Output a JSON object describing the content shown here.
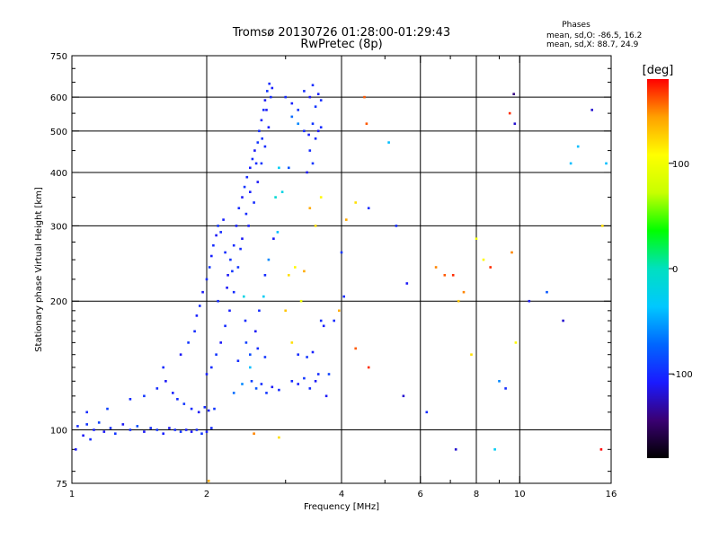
{
  "header": {
    "title_line1": "Tromsø 20130726 01:28:00-01:29:43",
    "title_line2": "RwPretec (8p)",
    "info_title": "Phases",
    "info_line1": "mean, sd,O: -86.5, 16.2",
    "info_line2": "mean, sd,X:  88.7, 24.9"
  },
  "colorbar": {
    "label": "[deg]",
    "ticks": [
      {
        "value": 100,
        "label": "100"
      },
      {
        "value": 0,
        "label": "0"
      },
      {
        "value": -100,
        "label": "-100"
      }
    ],
    "range": [
      -180,
      180
    ],
    "colors": [
      "#000000",
      "#3a0073",
      "#1a1aff",
      "#0066ff",
      "#00c8ff",
      "#00e0c0",
      "#00ff00",
      "#c8ff00",
      "#ffff00",
      "#ffa000",
      "#ff0000"
    ]
  },
  "chart_data": {
    "type": "scatter",
    "xlabel": "Frequency [MHz]",
    "ylabel": "Stationary phase Virtual Height [km]",
    "xscale": "log",
    "yscale": "log",
    "xlim": [
      1,
      16
    ],
    "ylim": [
      75,
      750
    ],
    "xticks": [
      {
        "value": 1,
        "label": "1"
      },
      {
        "value": 2,
        "label": "2"
      },
      {
        "value": 4,
        "label": "4"
      },
      {
        "value": 6,
        "label": "6"
      },
      {
        "value": 8,
        "label": "8"
      },
      {
        "value": 10,
        "label": "10"
      },
      {
        "value": 16,
        "label": "16"
      }
    ],
    "xminor": [
      3,
      5,
      7,
      9
    ],
    "yticks": [
      {
        "value": 75,
        "label": "75"
      },
      {
        "value": 100,
        "label": "100"
      },
      {
        "value": 200,
        "label": "200"
      },
      {
        "value": 300,
        "label": "300"
      },
      {
        "value": 400,
        "label": "400"
      },
      {
        "value": 500,
        "label": "500"
      },
      {
        "value": 600,
        "label": "600"
      },
      {
        "value": 750,
        "label": "750"
      }
    ],
    "grid": true,
    "points": [
      [
        1.03,
        102,
        -100
      ],
      [
        1.06,
        97,
        -110
      ],
      [
        1.08,
        103,
        -95
      ],
      [
        1.12,
        100,
        -105
      ],
      [
        1.15,
        104,
        -90
      ],
      [
        1.18,
        99,
        -110
      ],
      [
        1.22,
        101,
        -100
      ],
      [
        1.25,
        98,
        -95
      ],
      [
        1.3,
        103,
        -110
      ],
      [
        1.35,
        100,
        -100
      ],
      [
        1.4,
        102,
        -85
      ],
      [
        1.45,
        99,
        -110
      ],
      [
        1.5,
        101,
        -100
      ],
      [
        1.55,
        100,
        -95
      ],
      [
        1.6,
        98,
        -105
      ],
      [
        1.65,
        101,
        -110
      ],
      [
        1.7,
        100,
        -100
      ],
      [
        1.75,
        99,
        -95
      ],
      [
        1.8,
        100,
        -105
      ],
      [
        1.85,
        99,
        -110
      ],
      [
        1.9,
        100,
        -100
      ],
      [
        1.95,
        98,
        -95
      ],
      [
        2.0,
        99,
        -105
      ],
      [
        2.05,
        101,
        -100
      ],
      [
        1.08,
        110,
        -100
      ],
      [
        1.2,
        112,
        -90
      ],
      [
        1.35,
        118,
        -100
      ],
      [
        1.45,
        120,
        -95
      ],
      [
        1.55,
        125,
        -100
      ],
      [
        1.62,
        130,
        -110
      ],
      [
        1.68,
        122,
        -105
      ],
      [
        1.72,
        118,
        -100
      ],
      [
        1.78,
        115,
        -95
      ],
      [
        1.85,
        112,
        -100
      ],
      [
        1.92,
        110,
        -110
      ],
      [
        1.98,
        113,
        -100
      ],
      [
        2.02,
        111,
        -105
      ],
      [
        2.08,
        112,
        -95
      ],
      [
        1.6,
        140,
        -100
      ],
      [
        1.75,
        150,
        -110
      ],
      [
        1.82,
        160,
        -95
      ],
      [
        1.88,
        170,
        -100
      ],
      [
        1.9,
        185,
        -105
      ],
      [
        1.93,
        195,
        -100
      ],
      [
        1.96,
        210,
        -110
      ],
      [
        2.0,
        225,
        -100
      ],
      [
        2.03,
        240,
        -95
      ],
      [
        2.05,
        255,
        -105
      ],
      [
        2.07,
        270,
        -100
      ],
      [
        2.1,
        285,
        -110
      ],
      [
        2.12,
        300,
        -95
      ],
      [
        2.15,
        290,
        -100
      ],
      [
        2.18,
        310,
        -105
      ],
      [
        2.2,
        260,
        -100
      ],
      [
        2.23,
        230,
        -110
      ],
      [
        2.26,
        250,
        -95
      ],
      [
        2.3,
        270,
        -100
      ],
      [
        2.33,
        300,
        -105
      ],
      [
        2.36,
        330,
        -100
      ],
      [
        2.4,
        350,
        -110
      ],
      [
        2.43,
        370,
        -95
      ],
      [
        2.46,
        390,
        -100
      ],
      [
        2.5,
        410,
        -105
      ],
      [
        2.53,
        430,
        -100
      ],
      [
        2.56,
        450,
        -110
      ],
      [
        2.6,
        470,
        -95
      ],
      [
        2.62,
        500,
        -100
      ],
      [
        2.65,
        530,
        -105
      ],
      [
        2.68,
        560,
        -100
      ],
      [
        2.7,
        590,
        -110
      ],
      [
        2.73,
        620,
        -95
      ],
      [
        2.76,
        645,
        -100
      ],
      [
        2.8,
        630,
        -105
      ],
      [
        2.78,
        600,
        -100
      ],
      [
        2.72,
        560,
        -110
      ],
      [
        2.66,
        480,
        -95
      ],
      [
        2.58,
        420,
        -100
      ],
      [
        2.5,
        360,
        -105
      ],
      [
        2.45,
        320,
        -100
      ],
      [
        2.4,
        280,
        -110
      ],
      [
        2.35,
        240,
        -95
      ],
      [
        2.3,
        210,
        -100
      ],
      [
        2.25,
        190,
        -105
      ],
      [
        2.2,
        175,
        -100
      ],
      [
        2.15,
        160,
        -110
      ],
      [
        2.1,
        150,
        -95
      ],
      [
        2.05,
        140,
        -100
      ],
      [
        2.0,
        135,
        -105
      ],
      [
        2.12,
        200,
        -100
      ],
      [
        2.22,
        215,
        -110
      ],
      [
        2.28,
        235,
        -95
      ],
      [
        2.38,
        265,
        -100
      ],
      [
        2.48,
        300,
        -105
      ],
      [
        2.55,
        340,
        -100
      ],
      [
        2.6,
        380,
        -110
      ],
      [
        2.65,
        420,
        -95
      ],
      [
        2.7,
        460,
        -100
      ],
      [
        2.75,
        510,
        -105
      ],
      [
        2.52,
        130,
        -90
      ],
      [
        2.58,
        125,
        -80
      ],
      [
        2.65,
        128,
        -100
      ],
      [
        2.72,
        122,
        -95
      ],
      [
        2.8,
        126,
        -110
      ],
      [
        2.9,
        124,
        -100
      ],
      [
        2.5,
        150,
        -85
      ],
      [
        2.6,
        155,
        -100
      ],
      [
        2.7,
        148,
        -95
      ],
      [
        2.3,
        122,
        -70
      ],
      [
        2.4,
        128,
        -60
      ],
      [
        2.35,
        145,
        -100
      ],
      [
        2.45,
        160,
        -90
      ],
      [
        3.0,
        600,
        -100
      ],
      [
        3.1,
        580,
        -105
      ],
      [
        3.2,
        560,
        -95
      ],
      [
        3.3,
        620,
        -100
      ],
      [
        3.4,
        600,
        -110
      ],
      [
        3.45,
        640,
        -100
      ],
      [
        3.5,
        570,
        -95
      ],
      [
        3.55,
        610,
        -105
      ],
      [
        3.6,
        590,
        -100
      ],
      [
        3.3,
        500,
        -100
      ],
      [
        3.38,
        490,
        -105
      ],
      [
        3.45,
        520,
        -95
      ],
      [
        3.5,
        480,
        -100
      ],
      [
        3.55,
        500,
        -110
      ],
      [
        3.6,
        510,
        -100
      ],
      [
        3.1,
        540,
        -70
      ],
      [
        3.2,
        520,
        -60
      ],
      [
        3.4,
        450,
        -100
      ],
      [
        3.45,
        420,
        -95
      ],
      [
        3.35,
        400,
        -110
      ],
      [
        3.05,
        410,
        -80
      ],
      [
        3.1,
        130,
        -100
      ],
      [
        3.2,
        128,
        -105
      ],
      [
        3.3,
        132,
        -95
      ],
      [
        3.4,
        125,
        -100
      ],
      [
        3.5,
        130,
        -110
      ],
      [
        3.55,
        135,
        -100
      ],
      [
        3.2,
        150,
        -100
      ],
      [
        3.35,
        148,
        -95
      ],
      [
        3.45,
        152,
        -105
      ],
      [
        3.6,
        180,
        -100
      ],
      [
        3.65,
        175,
        -105
      ],
      [
        3.0,
        190,
        130
      ],
      [
        3.05,
        230,
        120
      ],
      [
        3.15,
        240,
        110
      ],
      [
        3.3,
        235,
        140
      ],
      [
        3.1,
        160,
        120
      ],
      [
        3.25,
        200,
        100
      ],
      [
        3.5,
        300,
        120
      ],
      [
        3.4,
        330,
        140
      ],
      [
        3.6,
        350,
        110
      ],
      [
        4.1,
        310,
        140
      ],
      [
        4.3,
        340,
        120
      ],
      [
        4.5,
        600,
        160
      ],
      [
        4.55,
        520,
        160
      ],
      [
        4.6,
        330,
        -100
      ],
      [
        5.1,
        470,
        -40
      ],
      [
        5.3,
        300,
        -100
      ],
      [
        5.6,
        220,
        -110
      ],
      [
        6.5,
        240,
        150
      ],
      [
        6.8,
        230,
        160
      ],
      [
        7.1,
        230,
        170
      ],
      [
        7.3,
        200,
        130
      ],
      [
        7.5,
        210,
        150
      ],
      [
        7.8,
        150,
        120
      ],
      [
        8.0,
        280,
        100
      ],
      [
        8.3,
        250,
        110
      ],
      [
        8.6,
        240,
        170
      ],
      [
        9.0,
        130,
        -60
      ],
      [
        9.3,
        125,
        -100
      ],
      [
        9.5,
        550,
        170
      ],
      [
        9.6,
        260,
        150
      ],
      [
        9.7,
        610,
        -140
      ],
      [
        9.75,
        520,
        -120
      ],
      [
        9.8,
        160,
        110
      ],
      [
        10.5,
        200,
        -110
      ],
      [
        11.5,
        210,
        -80
      ],
      [
        12.5,
        180,
        -120
      ],
      [
        13.0,
        420,
        -40
      ],
      [
        13.5,
        460,
        -40
      ],
      [
        14.5,
        560,
        -120
      ],
      [
        15.3,
        300,
        120
      ],
      [
        15.6,
        420,
        -40
      ],
      [
        15.2,
        90,
        180
      ],
      [
        7.2,
        90,
        -120
      ],
      [
        8.8,
        90,
        -30
      ],
      [
        6.2,
        110,
        -100
      ],
      [
        5.5,
        120,
        -120
      ],
      [
        4.3,
        155,
        160
      ],
      [
        4.6,
        140,
        170
      ],
      [
        2.55,
        98,
        150
      ],
      [
        2.9,
        96,
        120
      ],
      [
        1.1,
        95,
        -100
      ],
      [
        1.02,
        90,
        -110
      ],
      [
        2.02,
        76,
        140
      ],
      [
        3.75,
        135,
        -90
      ],
      [
        3.85,
        180,
        -100
      ],
      [
        3.7,
        120,
        -110
      ],
      [
        4.0,
        260,
        -95
      ],
      [
        4.05,
        205,
        -100
      ],
      [
        3.95,
        190,
        140
      ],
      [
        2.9,
        410,
        -30
      ],
      [
        2.95,
        360,
        -20
      ],
      [
        2.85,
        350,
        -10
      ],
      [
        2.88,
        290,
        -40
      ],
      [
        2.82,
        280,
        -110
      ],
      [
        2.75,
        250,
        -60
      ],
      [
        2.7,
        230,
        -100
      ],
      [
        2.68,
        205,
        -30
      ],
      [
        2.62,
        190,
        -100
      ],
      [
        2.57,
        170,
        -110
      ],
      [
        2.5,
        140,
        -40
      ],
      [
        2.44,
        180,
        -100
      ],
      [
        2.42,
        205,
        -20
      ]
    ]
  }
}
